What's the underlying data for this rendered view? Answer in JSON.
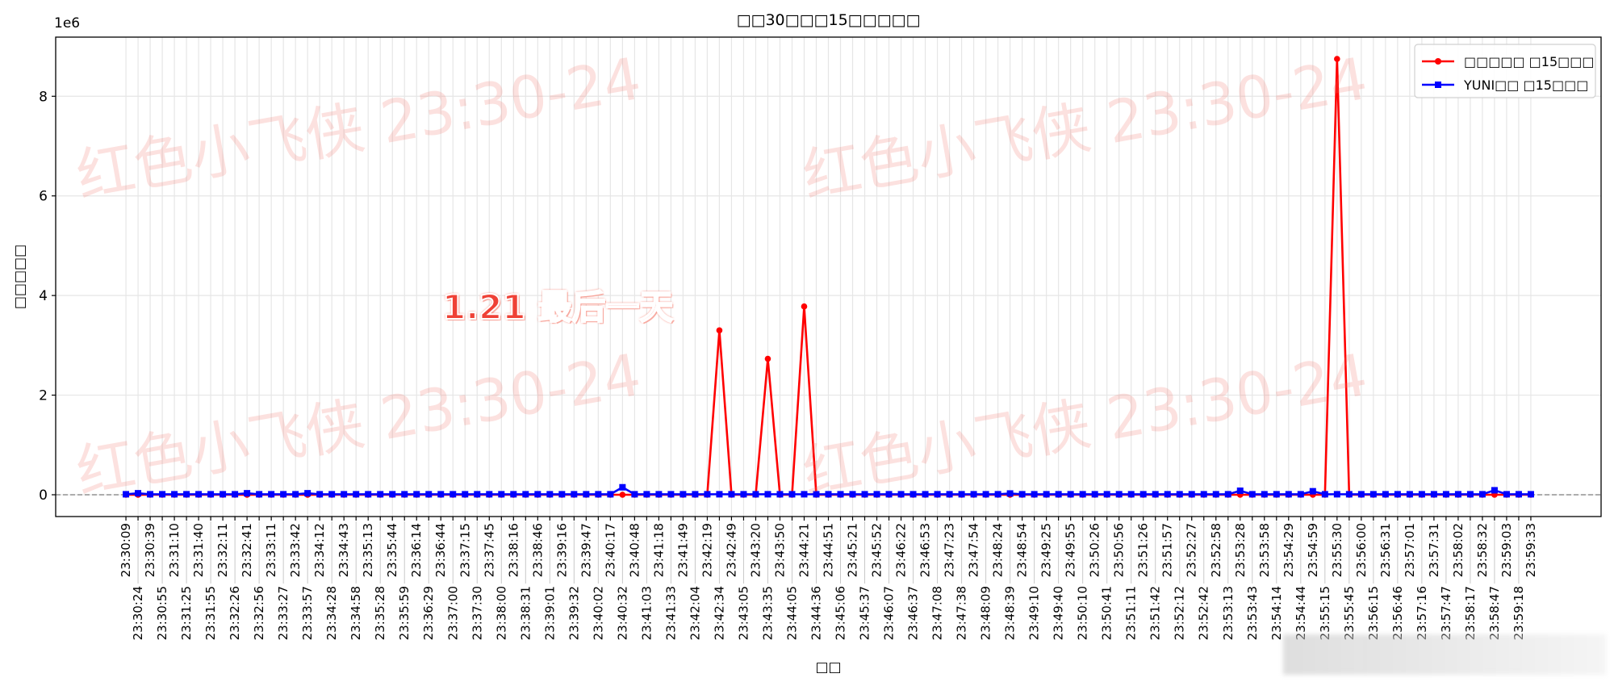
{
  "chart_data": {
    "type": "line",
    "title": "□□30□□□15□□□□□",
    "xlabel": "□□",
    "ylabel": "□□□□□",
    "y_offset_label": "1e6",
    "ylim": [
      -437500,
      9187500
    ],
    "yticks": [
      0,
      2000000,
      4000000,
      6000000,
      8000000
    ],
    "ytick_labels": [
      "0",
      "2",
      "4",
      "6",
      "8"
    ],
    "grid": true,
    "legend_placement": "top-right",
    "zero_line": {
      "y": 0,
      "style": "dashed",
      "color": "#808080"
    },
    "categories": [
      "23:30:09",
      "23:30:24",
      "23:30:39",
      "23:30:55",
      "23:31:10",
      "23:31:25",
      "23:31:40",
      "23:31:55",
      "23:32:11",
      "23:32:26",
      "23:32:41",
      "23:32:56",
      "23:33:11",
      "23:33:27",
      "23:33:42",
      "23:33:57",
      "23:34:12",
      "23:34:28",
      "23:34:43",
      "23:34:58",
      "23:35:13",
      "23:35:28",
      "23:35:44",
      "23:35:59",
      "23:36:14",
      "23:36:29",
      "23:36:44",
      "23:37:00",
      "23:37:15",
      "23:37:30",
      "23:37:45",
      "23:38:00",
      "23:38:16",
      "23:38:31",
      "23:38:46",
      "23:39:01",
      "23:39:16",
      "23:39:32",
      "23:39:47",
      "23:40:02",
      "23:40:17",
      "23:40:32",
      "23:40:48",
      "23:41:03",
      "23:41:18",
      "23:41:33",
      "23:41:49",
      "23:42:04",
      "23:42:19",
      "23:42:34",
      "23:42:49",
      "23:43:05",
      "23:43:20",
      "23:43:35",
      "23:43:50",
      "23:44:05",
      "23:44:21",
      "23:44:36",
      "23:44:51",
      "23:45:06",
      "23:45:21",
      "23:45:37",
      "23:45:52",
      "23:46:07",
      "23:46:22",
      "23:46:37",
      "23:46:53",
      "23:47:08",
      "23:47:23",
      "23:47:38",
      "23:47:54",
      "23:48:09",
      "23:48:24",
      "23:48:39",
      "23:48:54",
      "23:49:10",
      "23:49:25",
      "23:49:40",
      "23:49:55",
      "23:50:10",
      "23:50:26",
      "23:50:41",
      "23:50:56",
      "23:51:11",
      "23:51:26",
      "23:51:42",
      "23:51:57",
      "23:52:12",
      "23:52:27",
      "23:52:42",
      "23:52:58",
      "23:53:13",
      "23:53:28",
      "23:53:43",
      "23:53:58",
      "23:54:14",
      "23:54:29",
      "23:54:44",
      "23:54:59",
      "23:55:15",
      "23:55:30",
      "23:55:45",
      "23:56:00",
      "23:56:15",
      "23:56:31",
      "23:56:46",
      "23:57:01",
      "23:57:16",
      "23:57:31",
      "23:57:47",
      "23:58:02",
      "23:58:17",
      "23:58:32",
      "23:58:47",
      "23:59:03",
      "23:59:18",
      "23:59:33"
    ],
    "series": [
      {
        "name": "□□□□□ □15□□□",
        "color": "#ff0000",
        "marker": "circle",
        "values": [
          0,
          0,
          0,
          0,
          0,
          0,
          0,
          0,
          0,
          0,
          0,
          0,
          0,
          0,
          0,
          0,
          0,
          0,
          0,
          0,
          0,
          0,
          0,
          0,
          0,
          0,
          0,
          0,
          0,
          0,
          0,
          0,
          0,
          0,
          0,
          0,
          0,
          0,
          0,
          0,
          0,
          0,
          0,
          0,
          0,
          0,
          0,
          0,
          0,
          3300000,
          0,
          0,
          0,
          2730000,
          0,
          0,
          3780000,
          0,
          0,
          0,
          0,
          0,
          0,
          0,
          0,
          0,
          0,
          0,
          0,
          0,
          0,
          0,
          0,
          0,
          0,
          0,
          0,
          0,
          0,
          0,
          0,
          0,
          0,
          0,
          0,
          0,
          0,
          0,
          0,
          0,
          0,
          0,
          0,
          0,
          0,
          0,
          0,
          0,
          0,
          0,
          8750000,
          0,
          0,
          0,
          0,
          0,
          0,
          0,
          0,
          0,
          0,
          0,
          0,
          0,
          0,
          0,
          0
        ]
      },
      {
        "name": "YUNI□□ □15□□□",
        "color": "#0000ff",
        "marker": "square",
        "values": [
          10000,
          30000,
          10000,
          10000,
          10000,
          10000,
          10000,
          10000,
          10000,
          10000,
          30000,
          10000,
          10000,
          10000,
          10000,
          30000,
          10000,
          10000,
          10000,
          10000,
          10000,
          10000,
          10000,
          10000,
          10000,
          10000,
          10000,
          10000,
          10000,
          10000,
          10000,
          10000,
          10000,
          10000,
          10000,
          10000,
          10000,
          10000,
          10000,
          10000,
          10000,
          150000,
          10000,
          10000,
          10000,
          10000,
          10000,
          10000,
          10000,
          10000,
          10000,
          10000,
          10000,
          10000,
          10000,
          10000,
          10000,
          10000,
          10000,
          10000,
          10000,
          10000,
          10000,
          10000,
          10000,
          10000,
          10000,
          10000,
          10000,
          10000,
          10000,
          10000,
          10000,
          25000,
          10000,
          10000,
          10000,
          10000,
          10000,
          10000,
          10000,
          10000,
          10000,
          10000,
          10000,
          10000,
          10000,
          10000,
          10000,
          10000,
          10000,
          10000,
          80000,
          10000,
          10000,
          10000,
          10000,
          10000,
          70000,
          10000,
          10000,
          10000,
          10000,
          10000,
          10000,
          10000,
          10000,
          10000,
          10000,
          10000,
          10000,
          10000,
          10000,
          90000,
          10000,
          10000,
          10000
        ]
      }
    ]
  },
  "annotation": "1.21 最后一天",
  "watermark": "红色小飞侠 23:30-24"
}
